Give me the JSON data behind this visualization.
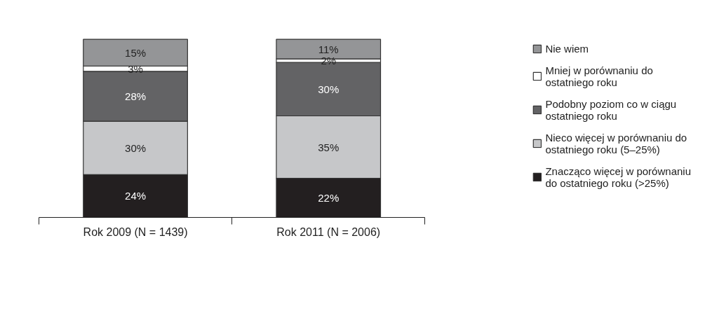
{
  "chart_data": {
    "type": "bar",
    "stacked": true,
    "categories": [
      "Rok 2009 (N = 1439)",
      "Rok 2011 (N = 2006)"
    ],
    "series": [
      {
        "name": "Znacząco więcej w porównaniu do ostatniego roku (>25%)",
        "color": "#231f20",
        "values": [
          24,
          22
        ],
        "value_labels": [
          "24%",
          "22%"
        ]
      },
      {
        "name": "Nieco więcej w porównaniu do ostatniego roku (5–25%)",
        "color": "#c6c7c9",
        "values": [
          30,
          35
        ],
        "value_labels": [
          "30%",
          "35%"
        ]
      },
      {
        "name": "Podobny poziom co w ciągu ostatniego roku",
        "color": "#636365",
        "values": [
          28,
          30
        ],
        "value_labels": [
          "28%",
          "30%"
        ]
      },
      {
        "name": "Mniej w porównaniu do ostatniego roku",
        "color": "#ffffff",
        "values": [
          3,
          2
        ],
        "value_labels": [
          "3%",
          "2%"
        ]
      },
      {
        "name": "Nie wiem",
        "color": "#949597",
        "values": [
          15,
          11
        ],
        "value_labels": [
          "15%",
          "11%"
        ]
      }
    ],
    "legend": "right",
    "grid": false
  }
}
